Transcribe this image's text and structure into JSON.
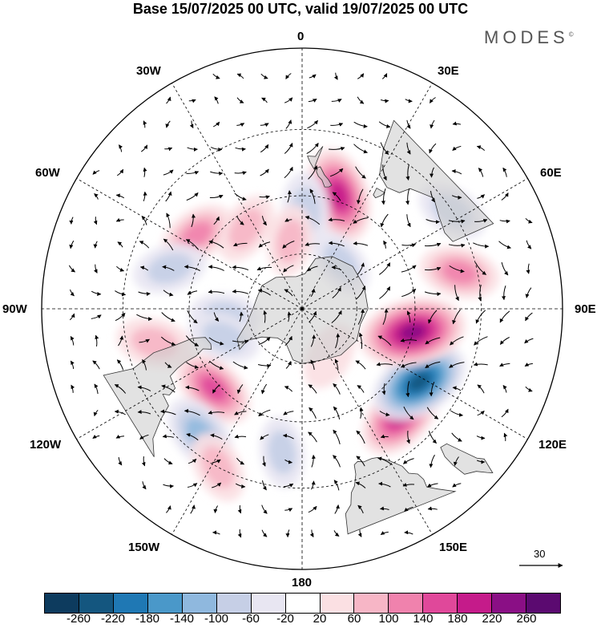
{
  "title": "Base 15/07/2025 00 UTC, valid 19/07/2025 00 UTC",
  "brand": "MODES",
  "brand_mark": "©",
  "longitude_labels": {
    "0": "0",
    "30E": "30E",
    "60E": "60E",
    "90E": "90E",
    "120E": "120E",
    "150E": "150E",
    "180": "180",
    "150W": "150W",
    "120W": "120W",
    "90W": "90W",
    "60W": "60W",
    "30W": "30W"
  },
  "vector_scale": {
    "label": "30"
  },
  "colorbar": {
    "colors": [
      "#0d3b5e",
      "#14567f",
      "#1f78b4",
      "#4a98c9",
      "#8fb8de",
      "#c6cfe6",
      "#e8e6f2",
      "#ffffff",
      "#fbe0e3",
      "#f7b6c6",
      "#f082ad",
      "#e0489a",
      "#c51b8a",
      "#8a0f85",
      "#5b0a70"
    ],
    "ticks": [
      "-260",
      "-220",
      "-180",
      "-140",
      "-100",
      "-60",
      "-20",
      "20",
      "60",
      "100",
      "140",
      "180",
      "220",
      "260"
    ]
  },
  "map": {
    "projection": "south-polar-stereographic",
    "anomalies": [
      {
        "lon": 43,
        "lat": -40,
        "value": 160
      },
      {
        "lon": 58,
        "lat": -42,
        "value": -200
      },
      {
        "lon": 78,
        "lat": -50,
        "value": 230
      },
      {
        "lon": 103,
        "lat": -35,
        "value": 90
      },
      {
        "lon": 123,
        "lat": -30,
        "value": -50
      },
      {
        "lon": 162,
        "lat": -48,
        "value": 170
      },
      {
        "lon": 178,
        "lat": -55,
        "value": -70
      },
      {
        "lon": 235,
        "lat": -45,
        "value": 80
      },
      {
        "lon": 253,
        "lat": -42,
        "value": -60
      },
      {
        "lon": 283,
        "lat": -38,
        "value": 70
      },
      {
        "lon": 312,
        "lat": -48,
        "value": 120
      },
      {
        "lon": 321,
        "lat": -35,
        "value": -100
      },
      {
        "lon": 332,
        "lat": -30,
        "value": 50
      },
      {
        "lon": 352,
        "lat": -40,
        "value": -40
      },
      {
        "lon": 215,
        "lat": -55,
        "value": 50
      },
      {
        "lon": 275,
        "lat": -62,
        "value": -40
      },
      {
        "lon": 290,
        "lat": -60,
        "value": -50
      },
      {
        "lon": 30,
        "lat": -70,
        "value": 30
      },
      {
        "lon": 140,
        "lat": -68,
        "value": -40
      },
      {
        "lon": 190,
        "lat": -65,
        "value": 40
      }
    ],
    "land": [
      {
        "name": "Antarctica",
        "points": [
          [
            0,
            -70
          ],
          [
            20,
            -70
          ],
          [
            40,
            -68
          ],
          [
            60,
            -67
          ],
          [
            75,
            -68
          ],
          [
            90,
            -66
          ],
          [
            110,
            -66
          ],
          [
            130,
            -66
          ],
          [
            150,
            -68
          ],
          [
            165,
            -71
          ],
          [
            175,
            -77
          ],
          [
            190,
            -78
          ],
          [
            205,
            -77
          ],
          [
            220,
            -75
          ],
          [
            240,
            -73
          ],
          [
            255,
            -73
          ],
          [
            270,
            -72
          ],
          [
            285,
            -69
          ],
          [
            295,
            -64
          ],
          [
            303,
            -63
          ],
          [
            300,
            -67
          ],
          [
            305,
            -72
          ],
          [
            320,
            -76
          ],
          [
            335,
            -76
          ],
          [
            350,
            -71
          ]
        ]
      },
      {
        "name": "Australia",
        "points": [
          [
            114,
            -22
          ],
          [
            114,
            -34
          ],
          [
            118,
            -35
          ],
          [
            124,
            -34
          ],
          [
            130,
            -32
          ],
          [
            135,
            -34
          ],
          [
            138,
            -35
          ],
          [
            140,
            -38
          ],
          [
            145,
            -39
          ],
          [
            150,
            -37
          ],
          [
            153,
            -30
          ],
          [
            154,
            -22
          ]
        ]
      },
      {
        "name": "Tasmania",
        "points": [
          [
            144.5,
            -40.7
          ],
          [
            148.3,
            -40.9
          ],
          [
            148,
            -43.2
          ],
          [
            146.5,
            -43.6
          ],
          [
            145.2,
            -42.2
          ]
        ]
      },
      {
        "name": "New Zealand North",
        "points": [
          [
            172.7,
            -34.4
          ],
          [
            174,
            -36
          ],
          [
            175,
            -37.6
          ],
          [
            178,
            -37.6
          ],
          [
            177,
            -39.3
          ],
          [
            175,
            -41.5
          ],
          [
            174.6,
            -39.8
          ]
        ]
      },
      {
        "name": "New Zealand South",
        "points": [
          [
            172.7,
            -40.5
          ],
          [
            174,
            -41
          ],
          [
            174,
            -42.2
          ],
          [
            173,
            -43.5
          ],
          [
            171.2,
            -44.5
          ],
          [
            169.5,
            -46.5
          ],
          [
            167.5,
            -46.2
          ],
          [
            166.5,
            -45.5
          ],
          [
            168.5,
            -44
          ],
          [
            170.5,
            -42.8
          ]
        ]
      },
      {
        "name": "South America",
        "points": [
          [
            288.5,
            -22
          ],
          [
            289.5,
            -30
          ],
          [
            286.5,
            -37
          ],
          [
            286,
            -44
          ],
          [
            285,
            -50
          ],
          [
            286.5,
            -54
          ],
          [
            291,
            -55
          ],
          [
            294,
            -54.5
          ],
          [
            292,
            -52
          ],
          [
            294,
            -49
          ],
          [
            294.5,
            -45
          ],
          [
            295.5,
            -42
          ],
          [
            297,
            -39
          ],
          [
            302,
            -38.5
          ],
          [
            303,
            -36
          ],
          [
            301.5,
            -34.5
          ],
          [
            306,
            -34
          ],
          [
            308,
            -30
          ],
          [
            311,
            -25
          ],
          [
            315,
            -22
          ]
        ]
      },
      {
        "name": "Africa",
        "points": [
          [
            11.5,
            -17
          ],
          [
            12,
            -22
          ],
          [
            14,
            -24
          ],
          [
            15,
            -27
          ],
          [
            16.5,
            -28.5
          ],
          [
            18,
            -31.5
          ],
          [
            18.5,
            -34.2
          ],
          [
            20,
            -34.8
          ],
          [
            22,
            -34
          ],
          [
            25,
            -34
          ],
          [
            27,
            -33.5
          ],
          [
            30,
            -31
          ],
          [
            32.5,
            -28
          ],
          [
            33,
            -25.5
          ],
          [
            35,
            -24
          ],
          [
            35.5,
            -22
          ],
          [
            35,
            -20
          ],
          [
            37,
            -18
          ],
          [
            40,
            -15
          ]
        ]
      },
      {
        "name": "Madagascar",
        "points": [
          [
            49.3,
            -12
          ],
          [
            50.5,
            -15.5
          ],
          [
            49.5,
            -17
          ],
          [
            48,
            -22
          ],
          [
            47,
            -25
          ],
          [
            45,
            -25.5
          ],
          [
            44,
            -23
          ],
          [
            44,
            -20
          ],
          [
            44.5,
            -16.5
          ],
          [
            47,
            -15
          ],
          [
            48.5,
            -13
          ]
        ]
      }
    ],
    "vector_seed": 7
  }
}
